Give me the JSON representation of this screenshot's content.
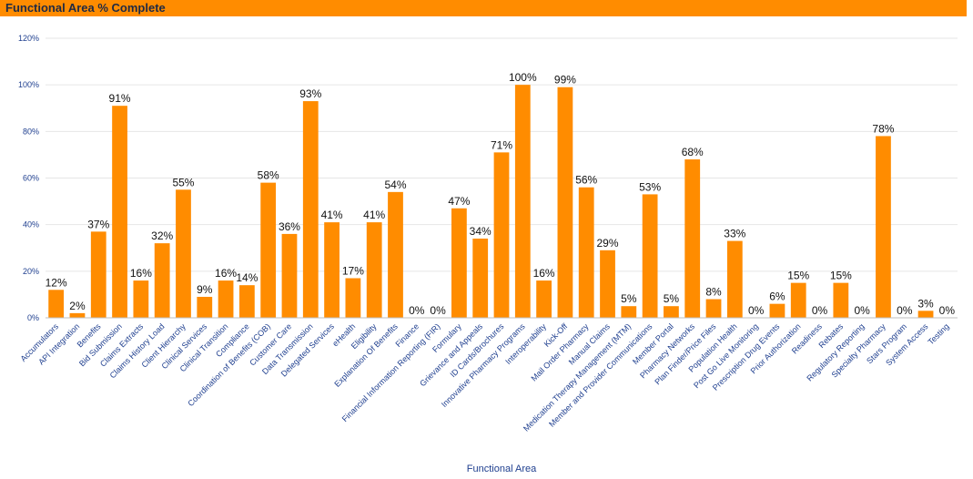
{
  "header": {
    "title": "Functional Area % Complete"
  },
  "colors": {
    "header": "#ff8c00",
    "bar": "#ff8c00",
    "axis_text": "#1f3f8f",
    "grid": "#e6e6e6"
  },
  "chart_data": {
    "type": "bar",
    "title": "Functional Area % Complete",
    "xlabel": "Functional Area",
    "ylabel": "",
    "ylim": [
      0,
      120
    ],
    "yticks": [
      "0%",
      "20%",
      "40%",
      "60%",
      "80%",
      "100%",
      "120%"
    ],
    "grid": true,
    "legend": "none",
    "categories": [
      "Accumulators",
      "API Integration",
      "Benefits",
      "Bid Submission",
      "Claims Extracts",
      "Claims History Load",
      "Client Hierarchy",
      "Clinical Services",
      "Clinical Transition",
      "Compliance",
      "Coordination of Benefits (COB)",
      "Customer Care",
      "Data Transmission",
      "Delegated Services",
      "eHealth",
      "Eligibility",
      "Explanation Of Benefits",
      "Finance",
      "Financial Information Reporting (FIR)",
      "Formulary",
      "Grievance and Appeals",
      "ID Cards/Brochures",
      "Innovative Pharmacy Programs",
      "Interoperability",
      "Kick-Off",
      "Mail Order Pharmacy",
      "Manual Claims",
      "Medication Therapy Management (MTM)",
      "Member and Provider Communications",
      "Member Portal",
      "Pharmacy Networks",
      "Plan Finder/Price Files",
      "Population Health",
      "Post Go Live Monitoring",
      "Prescription Drug Events",
      "Prior Authorization",
      "Readiness",
      "Rebates",
      "Regulatory Reporting",
      "Specialty Pharmacy",
      "Stars Program",
      "System Access",
      "Testing"
    ],
    "values": [
      12,
      2,
      37,
      91,
      16,
      32,
      55,
      9,
      16,
      14,
      58,
      36,
      93,
      41,
      17,
      41,
      54,
      0,
      0,
      47,
      34,
      71,
      100,
      16,
      99,
      56,
      29,
      5,
      53,
      5,
      68,
      8,
      33,
      0,
      6,
      15,
      0,
      15,
      0,
      78,
      0,
      3,
      0
    ],
    "data_labels": [
      "12%",
      "2%",
      "37%",
      "91%",
      "16%",
      "32%",
      "55%",
      "9%",
      "16%",
      "14%",
      "58%",
      "36%",
      "93%",
      "41%",
      "17%",
      "41%",
      "54%",
      "0%",
      "0%",
      "47%",
      "34%",
      "71%",
      "100%",
      "16%",
      "99%",
      "56%",
      "29%",
      "5%",
      "53%",
      "5%",
      "68%",
      "8%",
      "33%",
      "0%",
      "6%",
      "15%",
      "0%",
      "15%",
      "0%",
      "78%",
      "0%",
      "3%",
      "0%"
    ]
  }
}
